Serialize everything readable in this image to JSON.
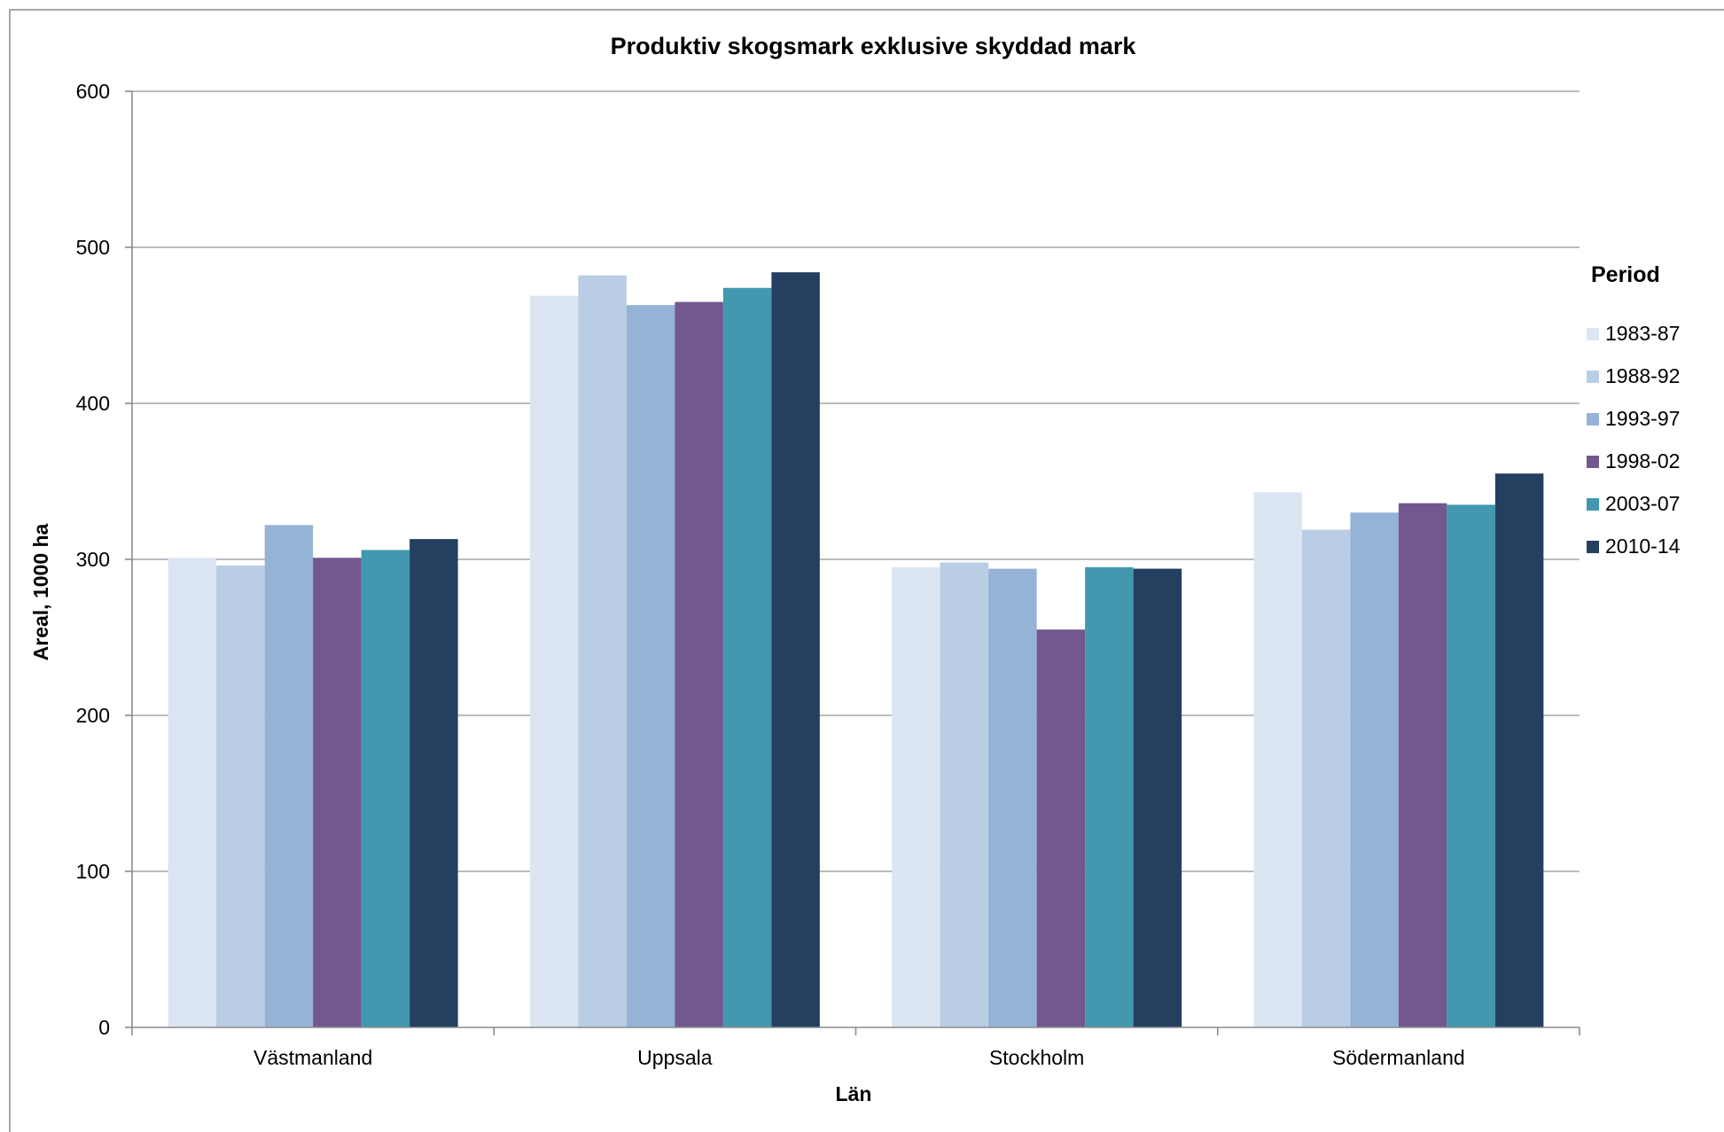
{
  "chart_data": {
    "type": "bar",
    "title": "Produktiv skogsmark exklusive skyddad mark",
    "xlabel": "Län",
    "ylabel": "Areal, 1000 ha",
    "ylim": [
      0,
      600
    ],
    "yticks": [
      0,
      100,
      200,
      300,
      400,
      500,
      600
    ],
    "grid": true,
    "legend_title": "Period",
    "legend_position": "right",
    "categories": [
      "Västmanland",
      "Uppsala",
      "Stockholm",
      "Södermanland"
    ],
    "series": [
      {
        "name": "1983-87",
        "color": "#DCE6F2",
        "values": [
          301,
          469,
          295,
          343
        ]
      },
      {
        "name": "1988-92",
        "color": "#B9CDE5",
        "values": [
          296,
          482,
          298,
          319
        ]
      },
      {
        "name": "1993-97",
        "color": "#95B3D7",
        "values": [
          322,
          463,
          294,
          330
        ]
      },
      {
        "name": "1998-02",
        "color": "#72588E",
        "values": [
          301,
          465,
          255,
          336
        ]
      },
      {
        "name": "2003-07",
        "color": "#4198AF",
        "values": [
          306,
          474,
          295,
          335
        ]
      },
      {
        "name": "2010-14",
        "color": "#243F60",
        "values": [
          313,
          484,
          294,
          355
        ]
      }
    ]
  }
}
